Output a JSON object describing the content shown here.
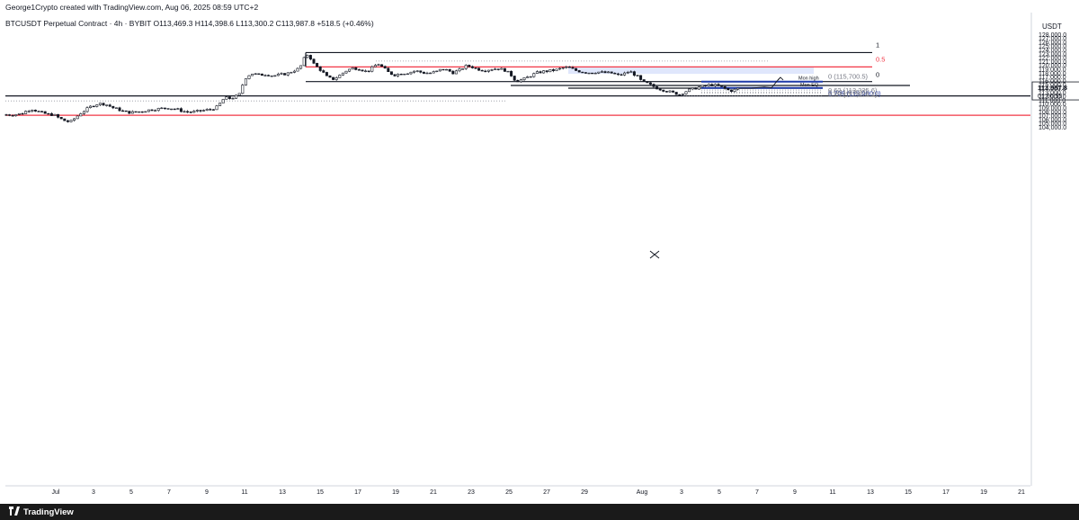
{
  "header": {
    "credit": "George1Crypto created with TradingView.com, Aug 06, 2025 08:59 UTC+2",
    "symbol_line": "BTCUSDT Perpetual Contract · 4h · BYBIT  O113,469.3  H114,398.6  L113,300.2  C113,987.8  +518.5 (+0.46%)"
  },
  "footer": {
    "brand": "TradingView"
  },
  "colors": {
    "up": "#131722",
    "down": "#131722",
    "resistance": "#f23645",
    "fib": "#f23645",
    "zone": "#dbe3fb",
    "mon_line": "#1e3aa8",
    "label_blue": "#2a3fa3"
  },
  "chart_data": {
    "type": "candlestick",
    "currency": "USDT",
    "ylim": [
      103500,
      130500
    ],
    "x_ticks": [
      "Jul",
      "3",
      "5",
      "7",
      "9",
      "11",
      "13",
      "15",
      "17",
      "19",
      "21",
      "23",
      "25",
      "27",
      "29",
      "Aug",
      "3",
      "5",
      "7",
      "9",
      "11",
      "13",
      "15",
      "17",
      "19",
      "21"
    ],
    "y_ticks": [
      "104,000.0",
      "105,000.0",
      "106,000.0",
      "107,000.0",
      "108,000.0",
      "109,000.0",
      "110,000.0",
      "111,000.0",
      "112,000.0",
      "113,000.0",
      "114,000.0",
      "115,000.0",
      "116,000.0",
      "117,000.0",
      "118,000.0",
      "119,000.0",
      "120,000.0",
      "121,000.0",
      "122,000.0",
      "123,000.0",
      "124,000.0",
      "125,000.0",
      "126,000.0",
      "127,000.0",
      "128,000.0",
      "129,000.0"
    ],
    "price_axis_values": [
      104000,
      105000,
      106000,
      107000,
      108000,
      109000,
      110000,
      111000,
      112000,
      113000,
      114000,
      115000,
      116000,
      117000,
      118000,
      119000,
      120000,
      121000,
      122000,
      123000,
      124000,
      125000,
      126000,
      127000,
      128000,
      129000
    ],
    "last_price": {
      "value": 113987.8,
      "label": "113,987.8",
      "countdown": "01:00:55"
    },
    "price_path": [
      [
        0,
        107200
      ],
      [
        12,
        107100
      ],
      [
        24,
        107400
      ],
      [
        30,
        108200
      ],
      [
        36,
        108600
      ],
      [
        44,
        107800
      ],
      [
        52,
        107300
      ],
      [
        60,
        107100
      ],
      [
        66,
        106200
      ],
      [
        72,
        105600
      ],
      [
        78,
        105200
      ],
      [
        84,
        106400
      ],
      [
        90,
        107600
      ],
      [
        96,
        108500
      ],
      [
        102,
        109400
      ],
      [
        108,
        109900
      ],
      [
        114,
        110000
      ],
      [
        120,
        109600
      ],
      [
        126,
        108900
      ],
      [
        132,
        108500
      ],
      [
        138,
        107900
      ],
      [
        146,
        107700
      ],
      [
        154,
        107900
      ],
      [
        162,
        108200
      ],
      [
        170,
        108500
      ],
      [
        178,
        108700
      ],
      [
        186,
        108900
      ],
      [
        196,
        108600
      ],
      [
        204,
        108000
      ],
      [
        212,
        107800
      ],
      [
        220,
        108000
      ],
      [
        228,
        108300
      ],
      [
        236,
        108600
      ],
      [
        242,
        109200
      ],
      [
        246,
        110500
      ],
      [
        250,
        111600
      ],
      [
        254,
        111300
      ],
      [
        260,
        111600
      ],
      [
        266,
        112300
      ],
      [
        270,
        115000
      ],
      [
        274,
        117000
      ],
      [
        280,
        117800
      ],
      [
        288,
        117400
      ],
      [
        296,
        117600
      ],
      [
        304,
        117200
      ],
      [
        312,
        117500
      ],
      [
        320,
        117800
      ],
      [
        326,
        118500
      ],
      [
        332,
        119000
      ],
      [
        336,
        120200
      ],
      [
        340,
        122800
      ],
      [
        344,
        122400
      ],
      [
        348,
        120500
      ],
      [
        352,
        119600
      ],
      [
        358,
        118400
      ],
      [
        364,
        116800
      ],
      [
        370,
        116300
      ],
      [
        376,
        117000
      ],
      [
        384,
        118400
      ],
      [
        392,
        119200
      ],
      [
        400,
        119000
      ],
      [
        408,
        118200
      ],
      [
        416,
        119600
      ],
      [
        420,
        120400
      ],
      [
        426,
        119300
      ],
      [
        432,
        118100
      ],
      [
        438,
        117400
      ],
      [
        446,
        117800
      ],
      [
        454,
        118000
      ],
      [
        462,
        118500
      ],
      [
        470,
        118000
      ],
      [
        478,
        117900
      ],
      [
        486,
        118300
      ],
      [
        492,
        119000
      ],
      [
        498,
        118600
      ],
      [
        504,
        118000
      ],
      [
        512,
        118800
      ],
      [
        518,
        119700
      ],
      [
        524,
        119600
      ],
      [
        530,
        119000
      ],
      [
        538,
        118600
      ],
      [
        546,
        118900
      ],
      [
        554,
        119100
      ],
      [
        562,
        118600
      ],
      [
        568,
        117500
      ],
      [
        572,
        116300
      ],
      [
        576,
        115900
      ],
      [
        582,
        116300
      ],
      [
        590,
        117200
      ],
      [
        596,
        117900
      ],
      [
        604,
        118300
      ],
      [
        612,
        118500
      ],
      [
        620,
        118800
      ],
      [
        628,
        119400
      ],
      [
        634,
        119200
      ],
      [
        640,
        118600
      ],
      [
        648,
        118200
      ],
      [
        656,
        118000
      ],
      [
        664,
        118200
      ],
      [
        672,
        118000
      ],
      [
        680,
        117900
      ],
      [
        688,
        117300
      ],
      [
        694,
        117700
      ],
      [
        700,
        118400
      ],
      [
        706,
        117500
      ],
      [
        710,
        116800
      ],
      [
        714,
        115600
      ],
      [
        720,
        115200
      ],
      [
        726,
        114500
      ],
      [
        732,
        113900
      ],
      [
        738,
        113500
      ],
      [
        744,
        113100
      ],
      [
        750,
        112700
      ],
      [
        756,
        112400
      ],
      [
        760,
        112900
      ],
      [
        766,
        113500
      ],
      [
        772,
        113900
      ],
      [
        778,
        114300
      ],
      [
        784,
        114600
      ],
      [
        790,
        114900
      ],
      [
        796,
        114700
      ],
      [
        802,
        114300
      ],
      [
        808,
        113700
      ],
      [
        812,
        113300
      ],
      [
        816,
        113500
      ],
      [
        822,
        113987
      ]
    ],
    "levels": [
      {
        "name": "high-sweep",
        "price": 123200,
        "label": "1"
      },
      {
        "name": "eq-0.5",
        "price": 119500,
        "label": "0.5"
      },
      {
        "name": "range-low",
        "price": 115700,
        "label": "0"
      },
      {
        "name": "mid-line",
        "price": 114000
      },
      {
        "name": "aug-support",
        "price": 114700
      },
      {
        "name": "support-112k",
        "price": 112000
      },
      {
        "name": "resistance-107k",
        "price": 107000
      }
    ],
    "dotted_levels": [
      121000,
      110700,
      113500,
      113000,
      112700,
      111900
    ],
    "zone": {
      "from_price": 117700,
      "to_price": 119500,
      "from": "Jul 28",
      "to": "Aug 10"
    },
    "mon_high": {
      "price": 115700,
      "label": "Mon high"
    },
    "mon_eq": {
      "price": 114000,
      "label": "Mon EQ"
    },
    "fib_labels": [
      {
        "price": 115700,
        "label": "0 (115,700.5)"
      },
      {
        "price": 113325,
        "label": "0.62 (113,325.6)"
      },
      {
        "price": 113000,
        "label": "0.705 (113,000.0)"
      },
      {
        "price": 112674,
        "label": "0.79 (112,674.4)"
      },
      {
        "price": 111870,
        "label": "1 (111,870.0)"
      }
    ],
    "projection": [
      [
        822,
        113987
      ],
      [
        836,
        114000
      ],
      [
        850,
        114300
      ],
      [
        858,
        114100
      ],
      [
        864,
        115800
      ],
      [
        868,
        116800
      ]
    ]
  }
}
